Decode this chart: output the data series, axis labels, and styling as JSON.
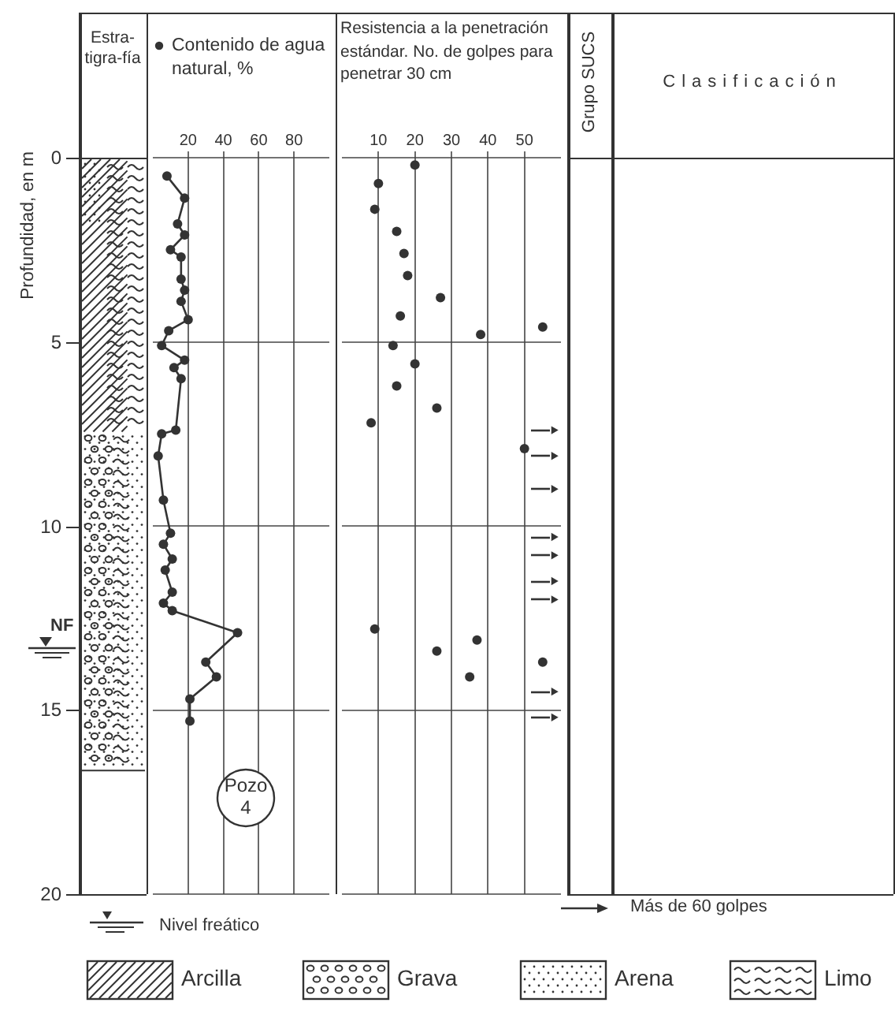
{
  "chart_data": [
    {
      "type": "line",
      "title": "Contenido de agua natural, %",
      "ylabel": "Profundidad, en m",
      "color": "#333333",
      "marker": "circle",
      "x": [
        8,
        18,
        14,
        18,
        10,
        16,
        16,
        18,
        16,
        20,
        9,
        5,
        18,
        12,
        16,
        13,
        5,
        3,
        6,
        10,
        6,
        11,
        7,
        11,
        6,
        11,
        48,
        30,
        36,
        21,
        21
      ],
      "values": [
        0.5,
        1.1,
        1.8,
        2.1,
        2.5,
        2.7,
        3.3,
        3.6,
        3.9,
        4.4,
        4.7,
        5.1,
        5.5,
        5.7,
        6.0,
        7.4,
        7.5,
        8.1,
        9.3,
        10.2,
        10.5,
        10.9,
        11.2,
        11.8,
        12.1,
        12.3,
        12.9,
        13.7,
        14.1,
        14.7,
        15.3
      ],
      "xlim": [
        0,
        100
      ],
      "xticks": [
        20,
        40,
        60,
        80
      ],
      "ylim": [
        20,
        0
      ],
      "yticks": [
        0,
        5,
        10,
        15,
        20
      ],
      "grid": true,
      "ref_lines": [
        {
          "axis": "y",
          "value": 13.3,
          "label": "NF"
        }
      ],
      "annotations": [
        "Pozo 4"
      ]
    },
    {
      "type": "scatter",
      "title": "Resistencia a la penetración estándar. No. de golpes para penetrar 30 cm",
      "xlim": [
        0,
        60
      ],
      "xticks": [
        10,
        20,
        30,
        40,
        50
      ],
      "ylim": [
        20,
        0
      ],
      "yticks": [
        0,
        5,
        10,
        15,
        20
      ],
      "grid": true,
      "tick_labels": "x",
      "series": [
        {
          "color": "#333333",
          "marker": "circle",
          "x": [
            20,
            10,
            9,
            15,
            17,
            18,
            27,
            16,
            55,
            38,
            14,
            20,
            15,
            26,
            8,
            50,
            9,
            26,
            37,
            35,
            55
          ],
          "values": [
            0.2,
            0.7,
            1.4,
            2.0,
            2.6,
            3.2,
            3.8,
            4.3,
            4.6,
            4.8,
            5.1,
            5.6,
            6.2,
            6.8,
            7.2,
            7.9,
            12.8,
            13.4,
            13.1,
            14.1,
            13.7
          ]
        },
        {
          "name": "Más de 60 golpes",
          "color": "#333333",
          "marker": "triangle",
          "x": [
            58,
            58,
            58,
            58,
            58,
            58,
            58,
            58,
            58
          ],
          "values": [
            7.4,
            8.1,
            9.0,
            10.3,
            10.8,
            11.5,
            12.0,
            14.5,
            15.2
          ]
        }
      ]
    },
    {
      "type": "other",
      "annotations": [
        "Estra-tigra-fía",
        "Grupo SUCS",
        "Clasificación",
        "Nivel freático",
        "Arcilla",
        "Grava",
        "Arena",
        "Limo"
      ]
    }
  ]
}
